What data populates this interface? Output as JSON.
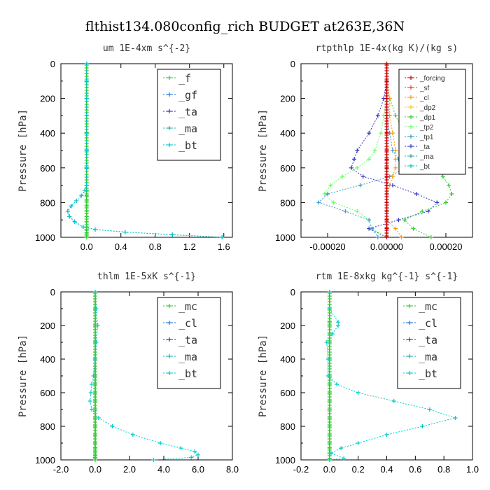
{
  "suptitle": "flthist134.080config_rich  BUDGET at263E,36N",
  "colors": {
    "forcing": "#cc0000",
    "sf": "#ff3333",
    "cl_orange": "#ff9900",
    "dp2": "#ffcc00",
    "dp1": "#33cc33",
    "tp2": "#66ff66",
    "tp1": "#3399cc",
    "ta": "#3333cc",
    "ma": "#33aaaa",
    "bt": "#00cccc",
    "mc": "#33cc33",
    "cl_blue": "#1f77d4",
    "f": "#33cc33",
    "gf": "#1f77d4",
    "zero_line": "#000000"
  },
  "chart_data": [
    {
      "type": "line",
      "title": "um  1E-4xm s^{-2}",
      "ylabel": "Pressure [hPa]",
      "xlim": [
        -0.3,
        1.7
      ],
      "ylim": [
        1000,
        0
      ],
      "xticks": [
        0.0,
        0.4,
        0.8,
        1.2,
        1.6
      ],
      "xtick_labels": [
        "0.0",
        "0.4",
        "0.8",
        "1.2",
        "1.6"
      ],
      "yticks": [
        0,
        200,
        400,
        600,
        800,
        1000
      ],
      "legend": [
        "_f",
        "_gf",
        "_ta",
        "_ma",
        "_bt"
      ],
      "legend_position": "top-right",
      "y": [
        0,
        100,
        200,
        300,
        400,
        500,
        600,
        700,
        730,
        760,
        790,
        820,
        850,
        880,
        910,
        940,
        955,
        970,
        985,
        1000
      ],
      "series": [
        {
          "name": "_f",
          "color_key": "f",
          "values": [
            0,
            0,
            0,
            0,
            0,
            0,
            0,
            0,
            0,
            0,
            0,
            0,
            0,
            0,
            0,
            0,
            0,
            0,
            0,
            0
          ]
        },
        {
          "name": "_gf",
          "color_key": "gf",
          "values": [
            0,
            0,
            0,
            0,
            0,
            0,
            0,
            0,
            -0.02,
            -0.06,
            -0.12,
            -0.18,
            -0.22,
            -0.2,
            -0.14,
            -0.04,
            0.1,
            0.45,
            1.0,
            1.58
          ]
        },
        {
          "name": "_bt",
          "color_key": "bt",
          "values": [
            0,
            0,
            0,
            0,
            0,
            0,
            0,
            0,
            -0.02,
            -0.06,
            -0.12,
            -0.18,
            -0.22,
            -0.2,
            -0.14,
            -0.04,
            0.1,
            0.45,
            1.0,
            1.58
          ]
        }
      ]
    },
    {
      "type": "line",
      "title": "rtpthlp  1E-4x(kg K)/(kg s)",
      "ylabel": "Pressure [hPa]",
      "xlim": [
        -0.00029,
        0.00029
      ],
      "ylim": [
        1000,
        0
      ],
      "xticks": [
        -0.0002,
        0.0,
        0.0002
      ],
      "xtick_labels": [
        "-0.00020",
        "0.00000",
        "0.00020"
      ],
      "yticks": [
        0,
        200,
        400,
        600,
        800,
        1000
      ],
      "legend": [
        "_forcing",
        "_sf",
        "_cl",
        "_dp2",
        "_dp1",
        "_tp2",
        "_tp1",
        "_ta",
        "_ma",
        "_bt"
      ],
      "legend_position": "top-right",
      "y": [
        0,
        100,
        200,
        300,
        400,
        500,
        550,
        600,
        650,
        700,
        750,
        800,
        850,
        900,
        950,
        1000
      ],
      "series": [
        {
          "name": "_ta",
          "color_key": "ta",
          "values": [
            0,
            0,
            -1e-05,
            -3e-05,
            -6e-05,
            -0.0001,
            -0.00011,
            -0.00012,
            -8e-05,
            2e-05,
            0.0001,
            0.00017,
            0.00014,
            4e-05,
            -6e-05,
            0.0
          ]
        },
        {
          "name": "_dp1",
          "color_key": "dp1",
          "values": [
            0,
            0,
            1e-05,
            3e-05,
            6e-05,
            0.00011,
            0.00014,
            0.00017,
            0.00019,
            0.00021,
            0.00022,
            0.0002,
            0.00012,
            6e-05,
            9e-05,
            0.00015
          ]
        },
        {
          "name": "_tp2",
          "color_key": "tp2",
          "values": [
            0,
            0,
            0.0,
            -1e-05,
            -2e-05,
            -4e-05,
            -6e-05,
            -0.0001,
            -0.00015,
            -0.00019,
            -0.00021,
            -0.00018,
            -0.0001,
            -6e-05,
            -5e-05,
            0.0
          ]
        },
        {
          "name": "_tp1",
          "color_key": "tp1",
          "values": [
            0,
            0,
            0.0,
            0.0,
            1e-05,
            2e-05,
            4e-05,
            6e-05,
            1e-05,
            -9e-05,
            -0.0002,
            -0.00023,
            -0.00014,
            -6e-05,
            -5e-05,
            -3e-05
          ]
        },
        {
          "name": "_cl",
          "color_key": "cl_orange",
          "values": [
            0,
            0,
            1e-05,
            1e-05,
            2e-05,
            3e-05,
            3e-05,
            3e-05,
            2e-05,
            1e-05,
            0.0,
            0.0,
            0.0,
            0.0,
            3e-05,
            5e-05
          ]
        },
        {
          "name": "_forcing",
          "color_key": "forcing",
          "values": [
            0,
            0,
            0,
            0,
            0,
            0,
            0,
            0,
            0,
            0,
            0,
            0,
            0,
            0,
            0,
            0
          ]
        }
      ]
    },
    {
      "type": "line",
      "title": "thlm  1E-5xK s^{-1}",
      "ylabel": "Pressure [hPa]",
      "xlim": [
        -2.0,
        8.0
      ],
      "ylim": [
        1000,
        0
      ],
      "xticks": [
        -2.0,
        0.0,
        2.0,
        4.0,
        6.0,
        8.0
      ],
      "xtick_labels": [
        "-2.0",
        "0.0",
        "2.0",
        "4.0",
        "6.0",
        "8.0"
      ],
      "yticks": [
        0,
        200,
        400,
        600,
        800,
        1000
      ],
      "legend": [
        "_mc",
        "_cl",
        "_ta",
        "_ma",
        "_bt"
      ],
      "legend_position": "top-right",
      "y": [
        0,
        100,
        200,
        300,
        400,
        500,
        550,
        600,
        650,
        700,
        750,
        800,
        850,
        900,
        930,
        950,
        970,
        985,
        1000
      ],
      "series": [
        {
          "name": "_mc",
          "color_key": "mc",
          "values": [
            0,
            0,
            0,
            0,
            0,
            0,
            0,
            0,
            0,
            0,
            0,
            0,
            0,
            0,
            0,
            0,
            0,
            0,
            0
          ]
        },
        {
          "name": "_bt",
          "color_key": "bt",
          "values": [
            0,
            0.05,
            0.15,
            0.05,
            0.0,
            -0.1,
            -0.2,
            -0.25,
            -0.3,
            -0.2,
            0.2,
            1.0,
            2.2,
            3.8,
            5.0,
            5.8,
            6.0,
            5.6,
            3.4
          ]
        }
      ]
    },
    {
      "type": "line",
      "title": "rtm  1E-8xkg kg^{-1} s^{-1}",
      "ylabel": "Pressure [hPa]",
      "xlim": [
        -0.2,
        1.0
      ],
      "ylim": [
        1000,
        0
      ],
      "xticks": [
        -0.2,
        0.0,
        0.2,
        0.4,
        0.6,
        0.8,
        1.0
      ],
      "xtick_labels": [
        "-0.2",
        "0.0",
        "0.2",
        "0.4",
        "0.6",
        "0.8",
        "1.0"
      ],
      "yticks": [
        0,
        200,
        400,
        600,
        800,
        1000
      ],
      "legend": [
        "_mc",
        "_cl",
        "_ta",
        "_ma",
        "_bt"
      ],
      "legend_position": "top-right",
      "y": [
        0,
        100,
        180,
        200,
        250,
        300,
        400,
        500,
        550,
        600,
        650,
        700,
        750,
        800,
        850,
        900,
        930,
        960,
        990,
        1000
      ],
      "series": [
        {
          "name": "_mc",
          "color_key": "mc",
          "values": [
            0,
            0,
            0,
            0,
            0,
            0,
            0,
            0,
            0,
            0,
            0,
            0,
            0,
            0,
            0,
            0,
            0,
            0,
            0,
            0
          ]
        },
        {
          "name": "_bt",
          "color_key": "bt",
          "values": [
            0,
            0.0,
            0.06,
            0.06,
            0.02,
            -0.02,
            -0.01,
            -0.01,
            0.05,
            0.2,
            0.45,
            0.7,
            0.88,
            0.65,
            0.4,
            0.2,
            0.08,
            0.01,
            0.1,
            0.0
          ]
        }
      ]
    }
  ]
}
